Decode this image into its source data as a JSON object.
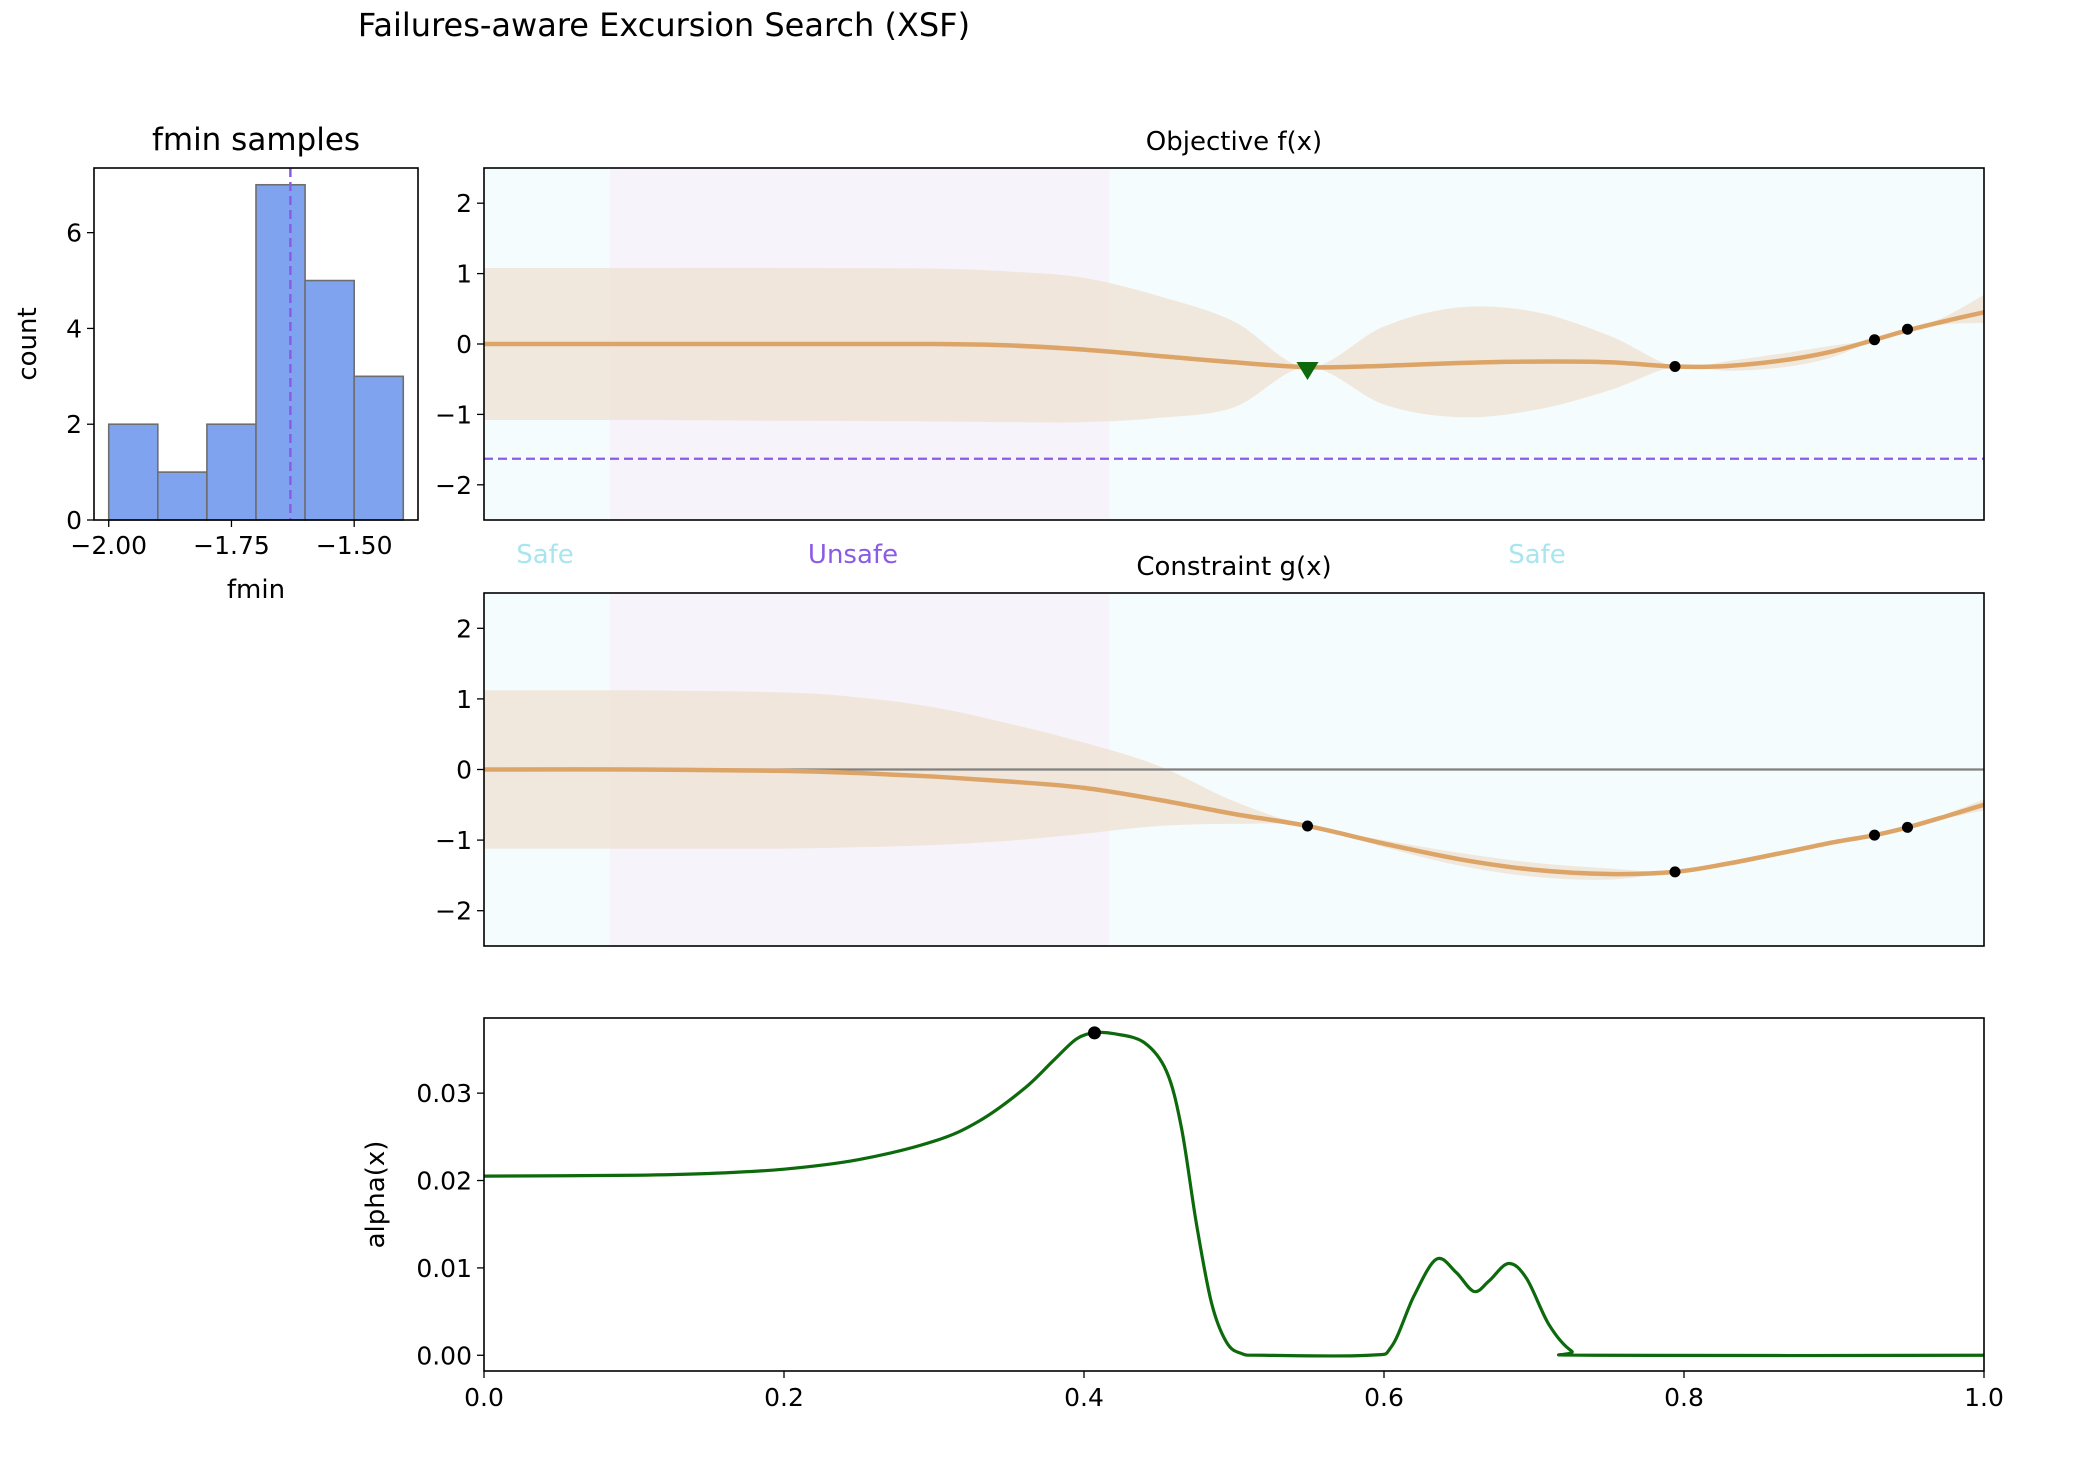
{
  "figure_title": "Failures-aware Excursion Search (XSF)",
  "colors": {
    "safe_bg": "#f5fcfd",
    "unsafe_bg": "#f7f3fb",
    "band": "#efe2d2",
    "mean": "#dda468",
    "fmin_line": "#8a5ce6",
    "hist_bar": "#7fa3ee",
    "hist_edge": "#6e6e6e",
    "alpha_line": "#0c6a0c",
    "zero_line": "#808080",
    "safe_label": "#a8e6ef",
    "unsafe_label": "#8a5ce6"
  },
  "region_labels": {
    "safe_left": "Safe",
    "unsafe": "Unsafe",
    "safe_right": "Safe"
  },
  "chart_data": [
    {
      "id": "hist",
      "type": "bar",
      "title": "fmin samples",
      "xlabel": "fmin",
      "ylabel": "count",
      "bins": [
        {
          "x0": -2.0,
          "x1": -1.9,
          "count": 2
        },
        {
          "x0": -1.9,
          "x1": -1.8,
          "count": 1
        },
        {
          "x0": -1.8,
          "x1": -1.7,
          "count": 2
        },
        {
          "x0": -1.7,
          "x1": -1.6,
          "count": 7
        },
        {
          "x0": -1.6,
          "x1": -1.5,
          "count": 5
        },
        {
          "x0": -1.5,
          "x1": -1.4,
          "count": 3
        }
      ],
      "vline": -1.63,
      "xlim": [
        -2.03,
        -1.37
      ],
      "ylim": [
        0,
        7.35
      ],
      "xticks": [
        -2.0,
        -1.75,
        -1.5
      ],
      "xtick_labels": [
        "−2.00",
        "−1.75",
        "−1.50"
      ],
      "yticks": [
        0,
        2,
        4,
        6
      ],
      "ytick_labels": [
        "0",
        "2",
        "4",
        "6"
      ]
    },
    {
      "id": "objective",
      "type": "line",
      "title": "Objective f(x)",
      "xlim": [
        0,
        1
      ],
      "ylim": [
        -2.5,
        2.5
      ],
      "yticks": [
        -2,
        -1,
        0,
        1,
        2
      ],
      "ytick_labels": [
        "−2",
        "−1",
        "0",
        "1",
        "2"
      ],
      "regions": [
        {
          "x0": 0.0,
          "x1": 0.084,
          "kind": "safe"
        },
        {
          "x0": 0.084,
          "x1": 0.417,
          "kind": "unsafe"
        },
        {
          "x0": 0.417,
          "x1": 1.0,
          "kind": "safe"
        }
      ],
      "fmin_hline": -1.63,
      "mean": [
        [
          0,
          0.0
        ],
        [
          0.1,
          0.0
        ],
        [
          0.2,
          0.0
        ],
        [
          0.3,
          0.0
        ],
        [
          0.35,
          -0.02
        ],
        [
          0.4,
          -0.08
        ],
        [
          0.45,
          -0.17
        ],
        [
          0.5,
          -0.26
        ],
        [
          0.55,
          -0.33
        ],
        [
          0.6,
          -0.31
        ],
        [
          0.65,
          -0.27
        ],
        [
          0.7,
          -0.25
        ],
        [
          0.75,
          -0.26
        ],
        [
          0.794,
          -0.32
        ],
        [
          0.83,
          -0.31
        ],
        [
          0.87,
          -0.22
        ],
        [
          0.9,
          -0.1
        ],
        [
          0.927,
          0.06
        ],
        [
          0.95,
          0.2
        ],
        [
          0.975,
          0.33
        ],
        [
          1.0,
          0.45
        ]
      ],
      "upper": [
        [
          0,
          1.08
        ],
        [
          0.1,
          1.08
        ],
        [
          0.2,
          1.08
        ],
        [
          0.3,
          1.07
        ],
        [
          0.35,
          1.03
        ],
        [
          0.4,
          0.94
        ],
        [
          0.45,
          0.68
        ],
        [
          0.5,
          0.32
        ],
        [
          0.549,
          -0.33
        ],
        [
          0.6,
          0.25
        ],
        [
          0.65,
          0.52
        ],
        [
          0.7,
          0.46
        ],
        [
          0.75,
          0.12
        ],
        [
          0.794,
          -0.32
        ],
        [
          0.83,
          -0.24
        ],
        [
          0.87,
          -0.12
        ],
        [
          0.9,
          -0.02
        ],
        [
          0.927,
          0.06
        ],
        [
          0.95,
          0.2
        ],
        [
          0.975,
          0.4
        ],
        [
          1.0,
          0.7
        ]
      ],
      "lower": [
        [
          0,
          -1.08
        ],
        [
          0.1,
          -1.08
        ],
        [
          0.2,
          -1.09
        ],
        [
          0.3,
          -1.1
        ],
        [
          0.35,
          -1.11
        ],
        [
          0.4,
          -1.11
        ],
        [
          0.45,
          -1.05
        ],
        [
          0.5,
          -0.9
        ],
        [
          0.549,
          -0.33
        ],
        [
          0.6,
          -0.86
        ],
        [
          0.65,
          -1.04
        ],
        [
          0.7,
          -0.94
        ],
        [
          0.75,
          -0.66
        ],
        [
          0.794,
          -0.32
        ],
        [
          0.83,
          -0.38
        ],
        [
          0.87,
          -0.32
        ],
        [
          0.9,
          -0.18
        ],
        [
          0.927,
          0.06
        ],
        [
          0.95,
          0.2
        ],
        [
          0.975,
          0.28
        ],
        [
          1.0,
          0.3
        ]
      ],
      "observations": [
        [
          0.794,
          -0.32
        ],
        [
          0.927,
          0.06
        ],
        [
          0.949,
          0.21
        ]
      ],
      "marker_point": [
        0.549,
        -0.37
      ]
    },
    {
      "id": "constraint",
      "type": "line",
      "title": "Constraint g(x)",
      "xlim": [
        0,
        1
      ],
      "ylim": [
        -2.5,
        2.5
      ],
      "yticks": [
        -2,
        -1,
        0,
        1,
        2
      ],
      "ytick_labels": [
        "−2",
        "−1",
        "0",
        "1",
        "2"
      ],
      "regions": [
        {
          "x0": 0.0,
          "x1": 0.084,
          "kind": "safe"
        },
        {
          "x0": 0.084,
          "x1": 0.417,
          "kind": "unsafe"
        },
        {
          "x0": 0.417,
          "x1": 1.0,
          "kind": "safe"
        }
      ],
      "zero_hline": 0,
      "mean": [
        [
          0,
          0.0
        ],
        [
          0.1,
          0.0
        ],
        [
          0.2,
          -0.02
        ],
        [
          0.25,
          -0.05
        ],
        [
          0.3,
          -0.1
        ],
        [
          0.35,
          -0.17
        ],
        [
          0.4,
          -0.26
        ],
        [
          0.45,
          -0.43
        ],
        [
          0.5,
          -0.63
        ],
        [
          0.549,
          -0.8
        ],
        [
          0.6,
          -1.05
        ],
        [
          0.65,
          -1.27
        ],
        [
          0.7,
          -1.42
        ],
        [
          0.75,
          -1.48
        ],
        [
          0.794,
          -1.45
        ],
        [
          0.83,
          -1.33
        ],
        [
          0.87,
          -1.16
        ],
        [
          0.9,
          -1.03
        ],
        [
          0.927,
          -0.93
        ],
        [
          0.949,
          -0.82
        ],
        [
          0.975,
          -0.66
        ],
        [
          1.0,
          -0.5
        ]
      ],
      "upper": [
        [
          0,
          1.12
        ],
        [
          0.1,
          1.12
        ],
        [
          0.2,
          1.09
        ],
        [
          0.25,
          1.02
        ],
        [
          0.3,
          0.88
        ],
        [
          0.35,
          0.65
        ],
        [
          0.4,
          0.38
        ],
        [
          0.45,
          0.05
        ],
        [
          0.5,
          -0.45
        ],
        [
          0.549,
          -0.8
        ],
        [
          0.6,
          -1.0
        ],
        [
          0.65,
          -1.18
        ],
        [
          0.7,
          -1.32
        ],
        [
          0.75,
          -1.4
        ],
        [
          0.794,
          -1.45
        ],
        [
          0.83,
          -1.3
        ],
        [
          0.87,
          -1.13
        ],
        [
          0.9,
          -1.0
        ],
        [
          0.927,
          -0.93
        ],
        [
          0.949,
          -0.82
        ],
        [
          0.975,
          -0.63
        ],
        [
          1.0,
          -0.42
        ]
      ],
      "lower": [
        [
          0,
          -1.12
        ],
        [
          0.1,
          -1.12
        ],
        [
          0.2,
          -1.12
        ],
        [
          0.25,
          -1.1
        ],
        [
          0.3,
          -1.07
        ],
        [
          0.35,
          -1.01
        ],
        [
          0.4,
          -0.91
        ],
        [
          0.45,
          -0.8
        ],
        [
          0.5,
          -0.77
        ],
        [
          0.549,
          -0.8
        ],
        [
          0.6,
          -1.1
        ],
        [
          0.65,
          -1.36
        ],
        [
          0.7,
          -1.52
        ],
        [
          0.75,
          -1.56
        ],
        [
          0.794,
          -1.45
        ],
        [
          0.83,
          -1.36
        ],
        [
          0.87,
          -1.19
        ],
        [
          0.9,
          -1.06
        ],
        [
          0.927,
          -0.93
        ],
        [
          0.949,
          -0.82
        ],
        [
          0.975,
          -0.69
        ],
        [
          1.0,
          -0.58
        ]
      ],
      "observations": [
        [
          0.549,
          -0.8
        ],
        [
          0.794,
          -1.45
        ],
        [
          0.927,
          -0.93
        ],
        [
          0.949,
          -0.82
        ]
      ]
    },
    {
      "id": "alpha",
      "type": "line",
      "ylabel": "alpha(x)",
      "xlim": [
        0,
        1
      ],
      "ylim": [
        -0.0018,
        0.0386
      ],
      "xticks": [
        0,
        0.2,
        0.4,
        0.6,
        0.8,
        1.0
      ],
      "xtick_labels": [
        "0.0",
        "0.2",
        "0.4",
        "0.6",
        "0.8",
        "1.0"
      ],
      "yticks": [
        0,
        0.01,
        0.02,
        0.03
      ],
      "ytick_labels": [
        "0.00",
        "0.01",
        "0.02",
        "0.03"
      ],
      "series": [
        [
          0,
          0.0205
        ],
        [
          0.1,
          0.0206
        ],
        [
          0.15,
          0.0208
        ],
        [
          0.2,
          0.0213
        ],
        [
          0.25,
          0.0224
        ],
        [
          0.3,
          0.0245
        ],
        [
          0.33,
          0.0268
        ],
        [
          0.36,
          0.0305
        ],
        [
          0.38,
          0.0338
        ],
        [
          0.395,
          0.0362
        ],
        [
          0.407,
          0.0369
        ],
        [
          0.42,
          0.0368
        ],
        [
          0.44,
          0.0358
        ],
        [
          0.455,
          0.0325
        ],
        [
          0.465,
          0.026
        ],
        [
          0.475,
          0.015
        ],
        [
          0.485,
          0.006
        ],
        [
          0.495,
          0.0015
        ],
        [
          0.505,
          0.0002
        ],
        [
          0.52,
          0.0
        ],
        [
          0.59,
          0.0
        ],
        [
          0.605,
          0.001
        ],
        [
          0.62,
          0.0068
        ],
        [
          0.635,
          0.011
        ],
        [
          0.648,
          0.0095
        ],
        [
          0.66,
          0.0073
        ],
        [
          0.67,
          0.0085
        ],
        [
          0.683,
          0.0105
        ],
        [
          0.695,
          0.0088
        ],
        [
          0.71,
          0.0035
        ],
        [
          0.725,
          0.0005
        ],
        [
          0.74,
          0.0
        ],
        [
          1.0,
          0.0
        ]
      ],
      "max_point": [
        0.407,
        0.0369
      ]
    }
  ]
}
